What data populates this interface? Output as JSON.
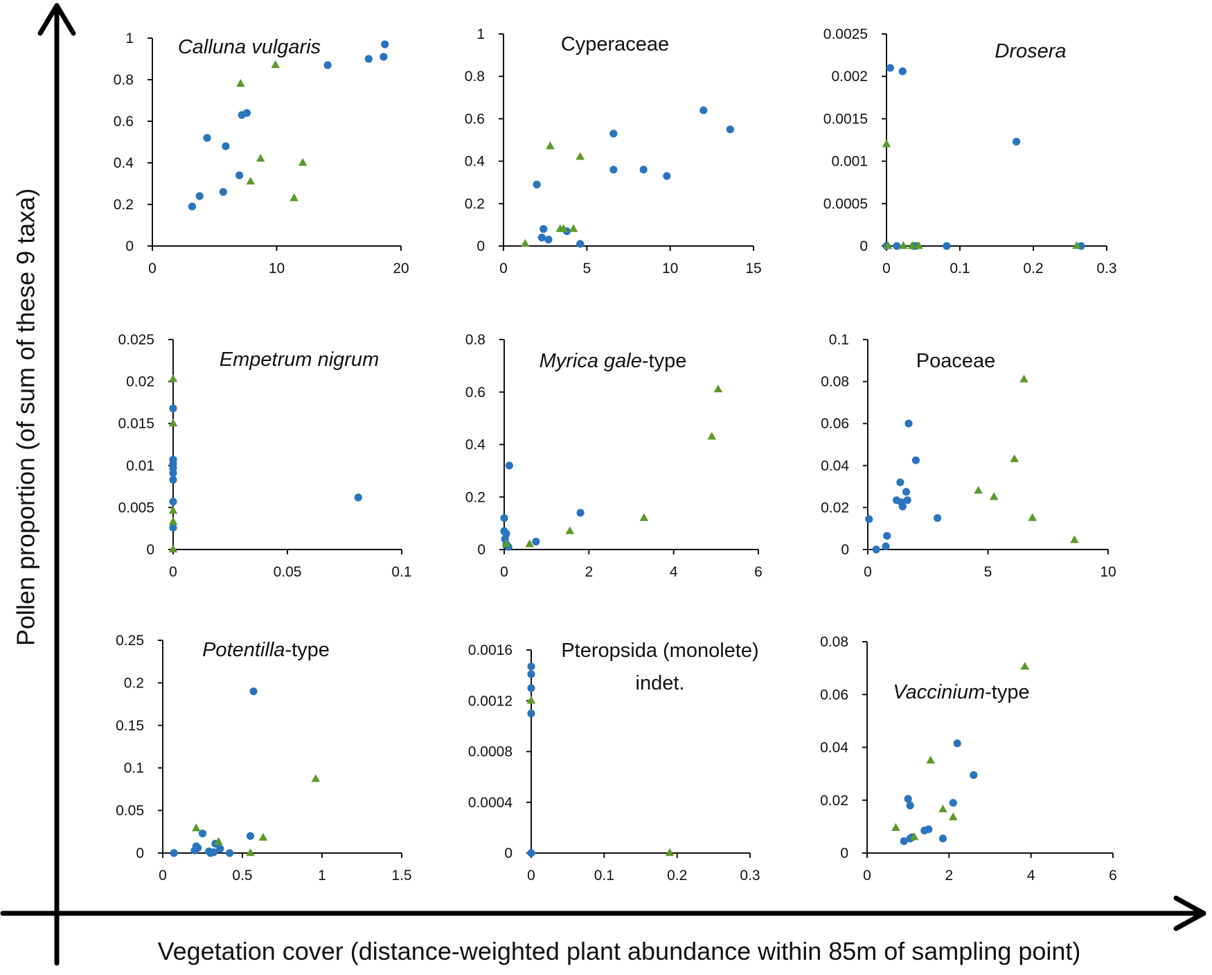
{
  "axis_titles": {
    "y": "Pollen proportion (of sum of these 9 taxa)",
    "x": "Vegetation cover (distance-weighted plant abundance within 85m of sampling point)"
  },
  "colors": {
    "circle_series": "#2a74bf",
    "triangle_series": "#5a9a2a",
    "axis": "#111111"
  },
  "chart_data": [
    {
      "type": "scatter",
      "title": "Calluna vulgaris",
      "title_parts": [
        {
          "text": "Calluna vulgaris",
          "italic": true
        }
      ],
      "xlim": [
        0,
        20
      ],
      "xticks": [
        0,
        10,
        20
      ],
      "xtick_labels": [
        "0",
        "10",
        "20"
      ],
      "ylim": [
        0,
        1
      ],
      "yticks": [
        0,
        0.2,
        0.4,
        0.6,
        0.8,
        1
      ],
      "ytick_labels": [
        "0",
        "0.2",
        "0.4",
        "0.6",
        "0.8",
        "1"
      ],
      "series": [
        {
          "name": "circles",
          "marker": "circle",
          "points": [
            [
              3.2,
              0.19
            ],
            [
              3.8,
              0.24
            ],
            [
              4.4,
              0.52
            ],
            [
              5.7,
              0.26
            ],
            [
              5.9,
              0.48
            ],
            [
              7.0,
              0.34
            ],
            [
              7.2,
              0.63
            ],
            [
              7.6,
              0.64
            ],
            [
              14.1,
              0.87
            ],
            [
              17.4,
              0.9
            ],
            [
              18.6,
              0.91
            ],
            [
              18.7,
              0.97
            ]
          ]
        },
        {
          "name": "triangles",
          "marker": "triangle",
          "points": [
            [
              7.1,
              0.78
            ],
            [
              7.9,
              0.31
            ],
            [
              8.7,
              0.42
            ],
            [
              9.9,
              0.87
            ],
            [
              11.4,
              0.23
            ],
            [
              12.1,
              0.4
            ]
          ]
        }
      ]
    },
    {
      "type": "scatter",
      "title": "Cyperaceae",
      "title_parts": [
        {
          "text": "Cyperaceae",
          "italic": false
        }
      ],
      "xlim": [
        0,
        15
      ],
      "xticks": [
        0,
        5,
        10,
        15
      ],
      "xtick_labels": [
        "0",
        "5",
        "10",
        "15"
      ],
      "ylim": [
        0,
        1
      ],
      "yticks": [
        0,
        0.2,
        0.4,
        0.6,
        0.8,
        1
      ],
      "ytick_labels": [
        "0",
        "0.2",
        "0.4",
        "0.6",
        "0.8",
        "1"
      ],
      "series": [
        {
          "name": "circles",
          "marker": "circle",
          "points": [
            [
              2.0,
              0.29
            ],
            [
              2.3,
              0.04
            ],
            [
              2.4,
              0.08
            ],
            [
              2.7,
              0.03
            ],
            [
              3.8,
              0.07
            ],
            [
              4.6,
              0.01
            ],
            [
              6.6,
              0.53
            ],
            [
              6.6,
              0.36
            ],
            [
              8.4,
              0.36
            ],
            [
              9.8,
              0.33
            ],
            [
              12.0,
              0.64
            ],
            [
              13.6,
              0.55
            ]
          ]
        },
        {
          "name": "triangles",
          "marker": "triangle",
          "points": [
            [
              1.3,
              0.01
            ],
            [
              2.8,
              0.47
            ],
            [
              3.4,
              0.08
            ],
            [
              3.6,
              0.08
            ],
            [
              4.2,
              0.08
            ],
            [
              4.6,
              0.42
            ]
          ]
        }
      ]
    },
    {
      "type": "scatter",
      "title": "Drosera",
      "title_parts": [
        {
          "text": "Drosera",
          "italic": true
        }
      ],
      "xlim": [
        0,
        0.3
      ],
      "xticks": [
        0,
        0.1,
        0.2,
        0.3
      ],
      "xtick_labels": [
        "0",
        "0.1",
        "0.2",
        "0.3"
      ],
      "ylim": [
        0,
        0.0025
      ],
      "yticks": [
        0,
        0.0005,
        0.001,
        0.0015,
        0.002,
        0.0025
      ],
      "ytick_labels": [
        "0",
        "0.0005",
        "0.001",
        "0.0015",
        "0.002",
        "0.0025"
      ],
      "series": [
        {
          "name": "circles",
          "marker": "circle",
          "points": [
            [
              0.0,
              0.0
            ],
            [
              0.005,
              0.0021
            ],
            [
              0.014,
              0.0
            ],
            [
              0.022,
              0.00206
            ],
            [
              0.037,
              0.0
            ],
            [
              0.04,
              0.0
            ],
            [
              0.082,
              0.0
            ],
            [
              0.177,
              0.00123
            ],
            [
              0.265,
              0.0
            ]
          ]
        },
        {
          "name": "triangles",
          "marker": "triangle",
          "points": [
            [
              0.0,
              0.0012
            ],
            [
              0.002,
              0.0
            ],
            [
              0.023,
              0.0
            ],
            [
              0.035,
              0.0
            ],
            [
              0.044,
              0.0
            ],
            [
              0.259,
              0.0
            ]
          ]
        }
      ]
    },
    {
      "type": "scatter",
      "title": "Empetrum nigrum",
      "title_parts": [
        {
          "text": "Empetrum nigrum",
          "italic": true
        }
      ],
      "xlim": [
        0,
        0.1
      ],
      "xticks": [
        0,
        0.05,
        0.1
      ],
      "xtick_labels": [
        "0",
        "0.05",
        "0.1"
      ],
      "ylim": [
        0,
        0.025
      ],
      "yticks": [
        0,
        0.005,
        0.01,
        0.015,
        0.02,
        0.025
      ],
      "ytick_labels": [
        "0",
        "0.005",
        "0.01",
        "0.015",
        "0.02",
        "0.025"
      ],
      "series": [
        {
          "name": "circles",
          "marker": "circle",
          "points": [
            [
              0,
              0.0168
            ],
            [
              0,
              0.0107
            ],
            [
              0,
              0.0102
            ],
            [
              0,
              0.0097
            ],
            [
              0,
              0.0091
            ],
            [
              0,
              0.0083
            ],
            [
              0,
              0.0057
            ],
            [
              0,
              0.0026
            ],
            [
              0.081,
              0.0062
            ]
          ]
        },
        {
          "name": "triangles",
          "marker": "triangle",
          "points": [
            [
              0,
              0.0203
            ],
            [
              0,
              0.015
            ],
            [
              0,
              0.0046
            ],
            [
              0,
              0.0033
            ],
            [
              0,
              0.0
            ]
          ]
        }
      ]
    },
    {
      "type": "scatter",
      "title": "Myrica gale-type",
      "title_parts": [
        {
          "text": "Myrica gale",
          "italic": true
        },
        {
          "text": "-type",
          "italic": false
        }
      ],
      "xlim": [
        0,
        6
      ],
      "xticks": [
        0,
        2,
        4,
        6
      ],
      "xtick_labels": [
        "0",
        "2",
        "4",
        "6"
      ],
      "ylim": [
        0,
        0.8
      ],
      "yticks": [
        0,
        0.2,
        0.4,
        0.6,
        0.8
      ],
      "ytick_labels": [
        "0",
        "0.2",
        "0.4",
        "0.6",
        "0.8"
      ],
      "series": [
        {
          "name": "circles",
          "marker": "circle",
          "points": [
            [
              0.0,
              0.12
            ],
            [
              0.0,
              0.07
            ],
            [
              0.05,
              0.06
            ],
            [
              0.02,
              0.04
            ],
            [
              0.05,
              0.02
            ],
            [
              0.1,
              0.01
            ],
            [
              0.12,
              0.32
            ],
            [
              0.75,
              0.03
            ],
            [
              1.8,
              0.14
            ]
          ]
        },
        {
          "name": "triangles",
          "marker": "triangle",
          "points": [
            [
              0.05,
              0.02
            ],
            [
              0.6,
              0.02
            ],
            [
              1.55,
              0.07
            ],
            [
              3.3,
              0.12
            ],
            [
              4.9,
              0.43
            ],
            [
              5.05,
              0.61
            ]
          ]
        }
      ]
    },
    {
      "type": "scatter",
      "title": "Poaceae",
      "title_parts": [
        {
          "text": "Poaceae",
          "italic": false
        }
      ],
      "xlim": [
        0,
        10
      ],
      "xticks": [
        0,
        5,
        10
      ],
      "xtick_labels": [
        "0",
        "5",
        "10"
      ],
      "ylim": [
        0,
        0.1
      ],
      "yticks": [
        0,
        0.02,
        0.04,
        0.06,
        0.08,
        0.1
      ],
      "ytick_labels": [
        "0",
        "0.02",
        "0.04",
        "0.06",
        "0.08",
        "0.1"
      ],
      "series": [
        {
          "name": "circles",
          "marker": "circle",
          "points": [
            [
              0.05,
              0.0145
            ],
            [
              0.35,
              0.0
            ],
            [
              0.75,
              0.0015
            ],
            [
              0.8,
              0.0065
            ],
            [
              1.2,
              0.0235
            ],
            [
              1.35,
              0.032
            ],
            [
              1.4,
              0.0225
            ],
            [
              1.45,
              0.0205
            ],
            [
              1.6,
              0.0275
            ],
            [
              1.65,
              0.0235
            ],
            [
              1.7,
              0.06
            ],
            [
              2.0,
              0.0425
            ],
            [
              2.9,
              0.015
            ]
          ]
        },
        {
          "name": "triangles",
          "marker": "triangle",
          "points": [
            [
              4.6,
              0.028
            ],
            [
              5.25,
              0.025
            ],
            [
              6.1,
              0.043
            ],
            [
              6.5,
              0.081
            ],
            [
              6.85,
              0.015
            ],
            [
              8.6,
              0.0045
            ]
          ]
        }
      ]
    },
    {
      "type": "scatter",
      "title": "Potentilla-type",
      "title_parts": [
        {
          "text": "Potentilla",
          "italic": true
        },
        {
          "text": "-type",
          "italic": false
        }
      ],
      "xlim": [
        0,
        1.5
      ],
      "xticks": [
        0,
        0.5,
        1,
        1.5
      ],
      "xtick_labels": [
        "0",
        "0.5",
        "1",
        "1.5"
      ],
      "ylim": [
        0,
        0.25
      ],
      "yticks": [
        0,
        0.05,
        0.1,
        0.15,
        0.2,
        0.25
      ],
      "ytick_labels": [
        "0",
        "0.05",
        "0.1",
        "0.15",
        "0.2",
        "0.25"
      ],
      "series": [
        {
          "name": "circles",
          "marker": "circle",
          "points": [
            [
              0.07,
              0.0
            ],
            [
              0.2,
              0.003
            ],
            [
              0.21,
              0.008
            ],
            [
              0.22,
              0.006
            ],
            [
              0.25,
              0.023
            ],
            [
              0.29,
              0.002
            ],
            [
              0.3,
              0.0
            ],
            [
              0.32,
              0.001
            ],
            [
              0.33,
              0.011
            ],
            [
              0.36,
              0.005
            ],
            [
              0.42,
              0.0
            ],
            [
              0.55,
              0.02
            ],
            [
              0.57,
              0.19
            ]
          ]
        },
        {
          "name": "triangles",
          "marker": "triangle",
          "points": [
            [
              0.21,
              0.029
            ],
            [
              0.35,
              0.013
            ],
            [
              0.55,
              0.0
            ],
            [
              0.63,
              0.018
            ],
            [
              0.96,
              0.087
            ]
          ]
        }
      ]
    },
    {
      "type": "scatter",
      "title": "Pteropsida (monolete) indet.",
      "title_parts": [
        {
          "text": "Pteropsida (monolete)",
          "italic": false
        }
      ],
      "title_line2": "indet.",
      "xlim": [
        0,
        0.3
      ],
      "xticks": [
        0,
        0.1,
        0.2,
        0.3
      ],
      "xtick_labels": [
        "0",
        "0.1",
        "0.2",
        "0.3"
      ],
      "ylim": [
        0,
        0.0016
      ],
      "yticks": [
        0,
        0.0004,
        0.0008,
        0.0012,
        0.0016
      ],
      "ytick_labels": [
        "0",
        "0.0004",
        "0.0008",
        "0.0012",
        "0.0016"
      ],
      "series": [
        {
          "name": "circles",
          "marker": "circle",
          "points": [
            [
              0,
              0.00147
            ],
            [
              0,
              0.00141
            ],
            [
              0,
              0.0013
            ],
            [
              0,
              0.0011
            ],
            [
              0,
              0.0
            ]
          ]
        },
        {
          "name": "triangles",
          "marker": "triangle",
          "points": [
            [
              0,
              0.0012
            ],
            [
              0.19,
              0.0
            ]
          ]
        }
      ]
    },
    {
      "type": "scatter",
      "title": "Vaccinium-type",
      "title_parts": [
        {
          "text": "Vaccinium",
          "italic": true
        },
        {
          "text": "-type",
          "italic": false
        }
      ],
      "xlim": [
        0,
        6
      ],
      "xticks": [
        0,
        2,
        4,
        6
      ],
      "xtick_labels": [
        "0",
        "2",
        "4",
        "6"
      ],
      "ylim": [
        0,
        0.08
      ],
      "yticks": [
        0,
        0.02,
        0.04,
        0.06,
        0.08
      ],
      "ytick_labels": [
        "0",
        "0.02",
        "0.04",
        "0.06",
        "0.08"
      ],
      "series": [
        {
          "name": "circles",
          "marker": "circle",
          "points": [
            [
              0.9,
              0.0045
            ],
            [
              1.0,
              0.0205
            ],
            [
              1.05,
              0.018
            ],
            [
              1.05,
              0.0055
            ],
            [
              1.1,
              0.006
            ],
            [
              1.4,
              0.0085
            ],
            [
              1.5,
              0.009
            ],
            [
              1.85,
              0.0055
            ],
            [
              2.1,
              0.019
            ],
            [
              2.2,
              0.0415
            ],
            [
              2.6,
              0.0295
            ]
          ]
        },
        {
          "name": "triangles",
          "marker": "triangle",
          "points": [
            [
              0.7,
              0.0095
            ],
            [
              1.15,
              0.006
            ],
            [
              1.55,
              0.035
            ],
            [
              1.85,
              0.0165
            ],
            [
              2.1,
              0.0135
            ],
            [
              3.85,
              0.0705
            ]
          ]
        }
      ]
    }
  ]
}
